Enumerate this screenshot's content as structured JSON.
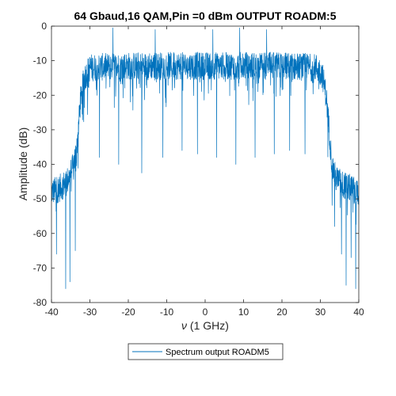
{
  "chart_data": {
    "type": "line",
    "title": "64 Gbaud,16 QAM,Pin =0 dBm OUTPUT ROADM:5",
    "xlabel_symbol": "ν",
    "xlabel_rest": " (1 GHz)",
    "ylabel": "Amplitude (dB)",
    "xlim": [
      -40,
      40
    ],
    "ylim": [
      -80,
      0
    ],
    "x_ticks": [
      -40,
      -30,
      -20,
      -10,
      0,
      10,
      20,
      30,
      40
    ],
    "y_ticks": [
      -80,
      -70,
      -60,
      -50,
      -40,
      -30,
      -20,
      -10,
      0
    ],
    "grid": false,
    "legend_position": "bottom-center",
    "series": [
      {
        "name": "Spectrum output ROADM5",
        "color": "#0072BD",
        "envelope": {
          "x": [
            -40,
            -38,
            -36,
            -34.5,
            -33.5,
            -33,
            -32.5,
            -31.5,
            -30,
            -20,
            -10,
            0,
            10,
            20,
            29,
            30.5,
            31.5,
            32.3,
            33,
            34,
            36,
            38,
            40
          ],
          "y": [
            -48,
            -47,
            -45,
            -41,
            -36,
            -30,
            -22,
            -15,
            -12,
            -11.5,
            -11.5,
            -11.5,
            -11.5,
            -11.5,
            -12,
            -14,
            -20,
            -30,
            -40,
            -44,
            -46,
            -47,
            -48
          ]
        },
        "noise_amplitude_dB": 4,
        "dips": [
          {
            "x": -36.3,
            "y": -76
          },
          {
            "x": -35.2,
            "y": -74
          },
          {
            "x": -33.8,
            "y": -65
          },
          {
            "x": -38.7,
            "y": -66
          },
          {
            "x": -27.5,
            "y": -38
          },
          {
            "x": -22.5,
            "y": -40
          },
          {
            "x": -16.5,
            "y": -42.5
          },
          {
            "x": -11,
            "y": -38
          },
          {
            "x": -6,
            "y": -36
          },
          {
            "x": -2,
            "y": -37
          },
          {
            "x": 3,
            "y": -38
          },
          {
            "x": 8,
            "y": -40
          },
          {
            "x": 13,
            "y": -38
          },
          {
            "x": 18,
            "y": -37
          },
          {
            "x": 22,
            "y": -36
          },
          {
            "x": 26,
            "y": -37
          },
          {
            "x": 33.7,
            "y": -58
          },
          {
            "x": 35.5,
            "y": -66
          },
          {
            "x": 36.7,
            "y": -75
          },
          {
            "x": 38,
            "y": -67
          },
          {
            "x": 39.2,
            "y": -76
          }
        ],
        "peaks": [
          {
            "x": -24,
            "y": -0.5
          },
          {
            "x": -13,
            "y": -1
          },
          {
            "x": 2,
            "y": -1
          },
          {
            "x": 9,
            "y": -0.5
          },
          {
            "x": 16,
            "y": -1
          }
        ]
      }
    ]
  }
}
